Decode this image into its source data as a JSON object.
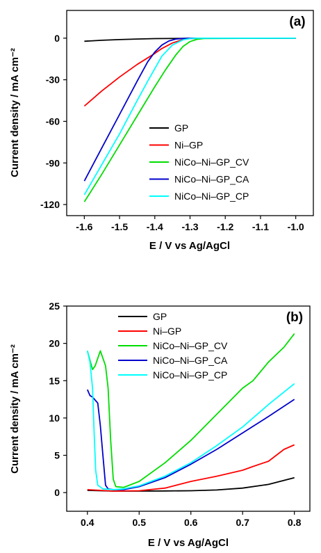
{
  "chart_data": [
    {
      "type": "line",
      "panel_label": "(a)",
      "xlabel": "E / V vs Ag/AgCl",
      "ylabel": "Current density / mA cm⁻²",
      "xlim": [
        -1.65,
        -0.95
      ],
      "ylim": [
        -128,
        20
      ],
      "xticks": [
        -1.6,
        -1.5,
        -1.4,
        -1.3,
        -1.2,
        -1.1,
        -1.0
      ],
      "xtick_labels": [
        "-1.6",
        "-1.5",
        "-1.4",
        "-1.3",
        "-1.2",
        "-1.1",
        "-1.0"
      ],
      "yticks": [
        0,
        -30,
        -60,
        -90,
        -120
      ],
      "ytick_labels": [
        "0",
        "-30",
        "-60",
        "-90",
        "-120"
      ],
      "legend_position": "lower-right",
      "series": [
        {
          "name": "GP",
          "color": "#000000",
          "x": [
            -1.6,
            -1.55,
            -1.5,
            -1.45,
            -1.4,
            -1.3,
            -1.2,
            -1.1,
            -1.0
          ],
          "y": [
            -2.2,
            -1.5,
            -1.0,
            -0.6,
            -0.3,
            -0.1,
            0,
            0,
            0
          ]
        },
        {
          "name": "Ni–GP",
          "color": "#ff0000",
          "x": [
            -1.6,
            -1.55,
            -1.5,
            -1.45,
            -1.4,
            -1.38,
            -1.35,
            -1.32,
            -1.3,
            -1.25,
            -1.0
          ],
          "y": [
            -49,
            -38,
            -28,
            -19,
            -11,
            -7.5,
            -3.5,
            -1,
            -0.3,
            0,
            0
          ]
        },
        {
          "name": "NiCo–Ni–GP_CV",
          "color": "#00dd00",
          "x": [
            -1.6,
            -1.55,
            -1.5,
            -1.45,
            -1.4,
            -1.37,
            -1.34,
            -1.32,
            -1.3,
            -1.28,
            -1.26,
            -1.0
          ],
          "y": [
            -118,
            -98,
            -77,
            -56,
            -35,
            -23,
            -12,
            -6,
            -2.5,
            -0.8,
            -0.2,
            0
          ]
        },
        {
          "name": "NiCo–Ni–GP_CA",
          "color": "#0000cc",
          "x": [
            -1.6,
            -1.55,
            -1.5,
            -1.45,
            -1.42,
            -1.4,
            -1.38,
            -1.36,
            -1.34,
            -1.32,
            -1.3,
            -1.0
          ],
          "y": [
            -103,
            -79,
            -55,
            -31,
            -17,
            -10,
            -5,
            -2,
            -0.6,
            -0.2,
            0,
            0
          ]
        },
        {
          "name": "NiCo–Ni–GP_CP",
          "color": "#00ffff",
          "x": [
            -1.6,
            -1.55,
            -1.5,
            -1.45,
            -1.42,
            -1.4,
            -1.38,
            -1.35,
            -1.32,
            -1.3,
            -1.28,
            -1.0
          ],
          "y": [
            -113,
            -91,
            -69,
            -45,
            -31,
            -22,
            -13,
            -5,
            -1.2,
            -0.3,
            0,
            0
          ]
        }
      ]
    },
    {
      "type": "line",
      "panel_label": "(b)",
      "xlabel": "E / V vs Ag/AgCl",
      "ylabel": "Current density / mA cm⁻²",
      "xlim": [
        0.36,
        0.83
      ],
      "ylim": [
        -2.5,
        25
      ],
      "xticks": [
        0.4,
        0.5,
        0.6,
        0.7,
        0.8
      ],
      "xtick_labels": [
        "0.4",
        "0.5",
        "0.6",
        "0.7",
        "0.8"
      ],
      "yticks": [
        0,
        5,
        10,
        15,
        20,
        25
      ],
      "ytick_labels": [
        "0",
        "5",
        "10",
        "15",
        "20",
        "25"
      ],
      "legend_position": "top-left",
      "series": [
        {
          "name": "GP",
          "color": "#000000",
          "x": [
            0.4,
            0.45,
            0.5,
            0.55,
            0.6,
            0.65,
            0.7,
            0.75,
            0.8
          ],
          "y": [
            0.3,
            0.2,
            0.2,
            0.22,
            0.25,
            0.35,
            0.6,
            1.1,
            2.0
          ]
        },
        {
          "name": "Ni–GP",
          "color": "#ff0000",
          "x": [
            0.4,
            0.45,
            0.5,
            0.55,
            0.6,
            0.65,
            0.7,
            0.72,
            0.75,
            0.78,
            0.8
          ],
          "y": [
            0.4,
            0.2,
            0.25,
            0.6,
            1.5,
            2.2,
            3.0,
            3.5,
            4.2,
            5.8,
            6.4
          ]
        },
        {
          "name": "NiCo–Ni–GP_CV",
          "color": "#00dd00",
          "x": [
            0.4,
            0.41,
            0.415,
            0.425,
            0.435,
            0.44,
            0.445,
            0.45,
            0.455,
            0.47,
            0.5,
            0.55,
            0.6,
            0.65,
            0.7,
            0.72,
            0.75,
            0.78,
            0.8
          ],
          "y": [
            19,
            16.5,
            17,
            19,
            17,
            14,
            7,
            1.8,
            0.8,
            0.7,
            1.5,
            4.0,
            7.0,
            10.5,
            14.0,
            15.0,
            17.5,
            19.5,
            21.3
          ]
        },
        {
          "name": "NiCo–Ni–GP_CA",
          "color": "#0000cc",
          "x": [
            0.4,
            0.405,
            0.41,
            0.42,
            0.425,
            0.43,
            0.435,
            0.44,
            0.45,
            0.47,
            0.5,
            0.55,
            0.6,
            0.65,
            0.7,
            0.75,
            0.8
          ],
          "y": [
            13.8,
            13.0,
            12.8,
            12,
            9,
            5,
            1,
            0.5,
            0.4,
            0.4,
            0.8,
            2.0,
            3.8,
            5.8,
            8.0,
            10.2,
            12.5
          ]
        },
        {
          "name": "NiCo–Ni–GP_CP",
          "color": "#00ffff",
          "x": [
            0.4,
            0.405,
            0.41,
            0.413,
            0.416,
            0.42,
            0.43,
            0.45,
            0.47,
            0.5,
            0.55,
            0.6,
            0.65,
            0.7,
            0.75,
            0.8
          ],
          "y": [
            19,
            17.5,
            14,
            8,
            3,
            1,
            0.5,
            0.4,
            0.5,
            0.9,
            2.2,
            4.0,
            6.3,
            8.8,
            11.8,
            14.6
          ]
        }
      ]
    }
  ]
}
